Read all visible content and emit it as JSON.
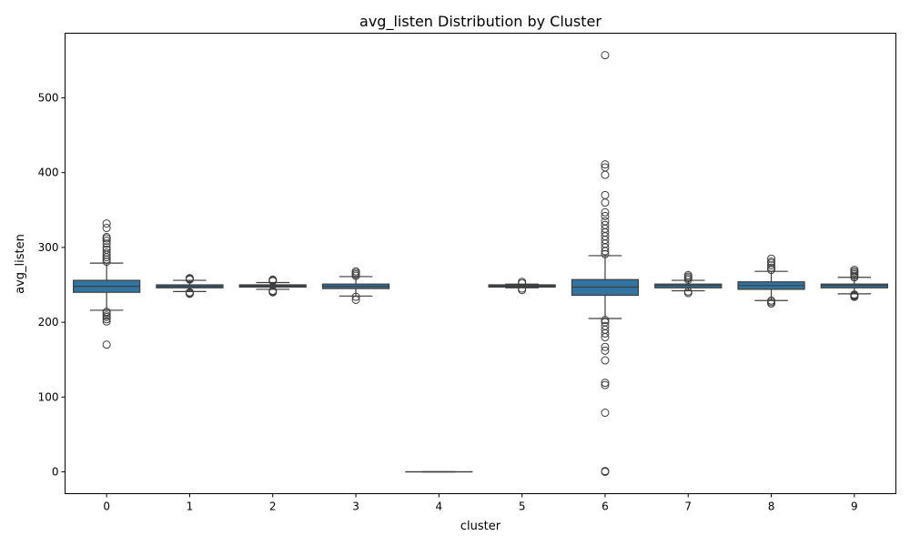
{
  "chart_data": {
    "type": "boxplot",
    "title": "avg_listen Distribution by Cluster",
    "xlabel": "cluster",
    "ylabel": "avg_listen",
    "categories": [
      "0",
      "1",
      "2",
      "3",
      "4",
      "5",
      "6",
      "7",
      "8",
      "9"
    ],
    "yticks": [
      "0",
      "100",
      "200",
      "300",
      "400",
      "500"
    ],
    "ylim": [
      -25,
      583
    ],
    "grid": false,
    "colors": {
      "box": "#3274a1",
      "line": "#3d3d3d"
    },
    "boxes": [
      {
        "cluster": "0",
        "whisker_low": 216,
        "q1": 240,
        "median": 248,
        "q3": 256,
        "whisker_high": 279,
        "outliers": [
          170,
          201,
          204,
          207,
          209,
          212,
          214,
          281,
          284,
          287,
          290,
          293,
          297,
          300,
          305,
          309,
          312,
          314,
          326,
          332
        ]
      },
      {
        "cluster": "1",
        "whisker_low": 241,
        "q1": 246,
        "median": 248,
        "q3": 250,
        "whisker_high": 256,
        "outliers": [
          238,
          239,
          240,
          257,
          258,
          259
        ]
      },
      {
        "cluster": "2",
        "whisker_low": 244,
        "q1": 247,
        "median": 248.5,
        "q3": 250,
        "whisker_high": 253,
        "outliers": [
          240,
          241,
          242,
          255,
          256,
          257
        ]
      },
      {
        "cluster": "3",
        "whisker_low": 235,
        "q1": 245,
        "median": 248,
        "q3": 251,
        "whisker_high": 261,
        "outliers": [
          230,
          234,
          262,
          264,
          266,
          268
        ]
      },
      {
        "cluster": "4",
        "whisker_low": 0,
        "q1": 0,
        "median": 0,
        "q3": 0,
        "whisker_high": 0,
        "outliers": []
      },
      {
        "cluster": "5",
        "whisker_low": 246,
        "q1": 247,
        "median": 248.5,
        "q3": 250,
        "whisker_high": 251,
        "outliers": [
          243,
          245,
          252,
          254
        ]
      },
      {
        "cluster": "6",
        "whisker_low": 205,
        "q1": 236,
        "median": 247,
        "q3": 257,
        "whisker_high": 289,
        "outliers": [
          0,
          1,
          79,
          116,
          119,
          149,
          162,
          167,
          180,
          185,
          190,
          195,
          200,
          203,
          291,
          295,
          300,
          305,
          310,
          315,
          320,
          325,
          330,
          335,
          342,
          347,
          360,
          370,
          397,
          407,
          411,
          557
        ]
      },
      {
        "cluster": "7",
        "whisker_low": 242,
        "q1": 246,
        "median": 249,
        "q3": 251,
        "whisker_high": 256,
        "outliers": [
          239,
          241,
          257,
          259,
          261,
          263
        ]
      },
      {
        "cluster": "8",
        "whisker_low": 229,
        "q1": 244,
        "median": 249,
        "q3": 254,
        "whisker_high": 268,
        "outliers": [
          225,
          227,
          229,
          270,
          273,
          276,
          279,
          281,
          285
        ]
      },
      {
        "cluster": "9",
        "whisker_low": 238,
        "q1": 246,
        "median": 249,
        "q3": 251,
        "whisker_high": 260,
        "outliers": [
          234,
          235,
          236,
          237,
          260,
          262,
          264,
          266,
          268,
          270
        ]
      }
    ]
  }
}
